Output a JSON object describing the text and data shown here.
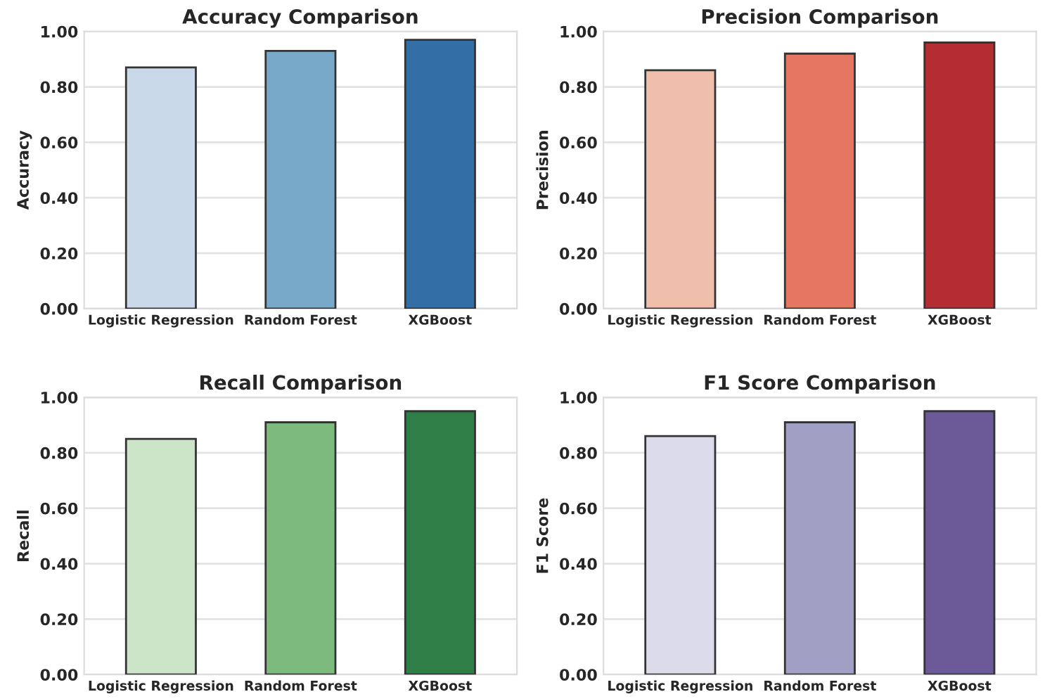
{
  "chart_data": [
    {
      "type": "bar",
      "title": "Accuracy Comparison",
      "ylabel": "Accuracy",
      "categories": [
        "Logistic Regression",
        "Random Forest",
        "XGBoost"
      ],
      "values": [
        0.87,
        0.93,
        0.97
      ],
      "colors": [
        "#c9d9ea",
        "#79a9c9",
        "#336fa5"
      ],
      "ylim": [
        0,
        1
      ],
      "yticks": [
        {
          "value": 0,
          "label": "0.00"
        },
        {
          "value": 0.2,
          "label": "0.20"
        },
        {
          "value": 0.4,
          "label": "0.40"
        },
        {
          "value": 0.6,
          "label": "0.60"
        },
        {
          "value": 0.8,
          "label": "0.80"
        },
        {
          "value": 1,
          "label": "1.00"
        }
      ],
      "grid": "y"
    },
    {
      "type": "bar",
      "title": "Precision Comparison",
      "ylabel": "Precision",
      "categories": [
        "Logistic Regression",
        "Random Forest",
        "XGBoost"
      ],
      "values": [
        0.86,
        0.92,
        0.96
      ],
      "colors": [
        "#f0bfab",
        "#e57762",
        "#b42d33"
      ],
      "ylim": [
        0,
        1
      ],
      "yticks": [
        {
          "value": 0,
          "label": "0.00"
        },
        {
          "value": 0.2,
          "label": "0.20"
        },
        {
          "value": 0.4,
          "label": "0.40"
        },
        {
          "value": 0.6,
          "label": "0.60"
        },
        {
          "value": 0.8,
          "label": "0.80"
        },
        {
          "value": 1,
          "label": "1.00"
        }
      ],
      "grid": "y"
    },
    {
      "type": "bar",
      "title": "Recall Comparison",
      "ylabel": "Recall",
      "categories": [
        "Logistic Regression",
        "Random Forest",
        "XGBoost"
      ],
      "values": [
        0.85,
        0.91,
        0.95
      ],
      "colors": [
        "#cce4c8",
        "#7cba7e",
        "#2f7e48"
      ],
      "ylim": [
        0,
        1
      ],
      "yticks": [
        {
          "value": 0,
          "label": "0.00"
        },
        {
          "value": 0.2,
          "label": "0.20"
        },
        {
          "value": 0.4,
          "label": "0.40"
        },
        {
          "value": 0.6,
          "label": "0.60"
        },
        {
          "value": 0.8,
          "label": "0.80"
        },
        {
          "value": 1,
          "label": "1.00"
        }
      ],
      "grid": "y"
    },
    {
      "type": "bar",
      "title": "F1 Score Comparison",
      "ylabel": "F1 Score",
      "categories": [
        "Logistic Regression",
        "Random Forest",
        "XGBoost"
      ],
      "values": [
        0.86,
        0.91,
        0.95
      ],
      "colors": [
        "#dcdbe9",
        "#a29fc4",
        "#6c5a98"
      ],
      "ylim": [
        0,
        1
      ],
      "yticks": [
        {
          "value": 0,
          "label": "0.00"
        },
        {
          "value": 0.2,
          "label": "0.20"
        },
        {
          "value": 0.4,
          "label": "0.40"
        },
        {
          "value": 0.6,
          "label": "0.60"
        },
        {
          "value": 0.8,
          "label": "0.80"
        },
        {
          "value": 1,
          "label": "1.00"
        }
      ],
      "grid": "y"
    }
  ]
}
